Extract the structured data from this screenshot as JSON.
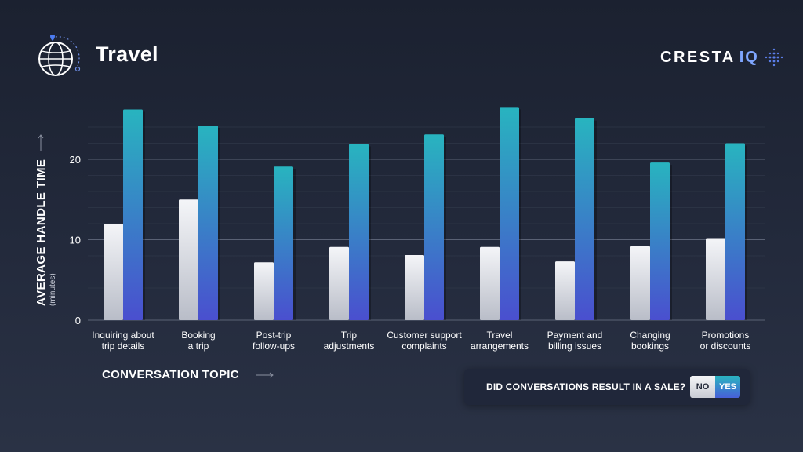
{
  "header": {
    "title": "Travel",
    "logo_text": "CRESTA",
    "logo_accent": "IQ",
    "icon": "globe-icon",
    "logo_icon": "dot-grid-icon"
  },
  "legend": {
    "question": "DID CONVERSATIONS RESULT IN A SALE?",
    "no_label": "NO",
    "yes_label": "YES"
  },
  "chart_data": {
    "type": "bar",
    "title": "Travel",
    "xlabel": "CONVERSATION TOPIC",
    "ylabel": "AVERAGE HANDLE TIME",
    "ylabel_sub": "(minutes)",
    "ylim": [
      0,
      27
    ],
    "yticks": [
      0,
      10,
      20
    ],
    "grid": true,
    "legend_position": "bottom-right",
    "categories": [
      [
        "Inquiring about",
        "trip details"
      ],
      [
        "Booking",
        "a trip"
      ],
      [
        "Post-trip",
        "follow-ups"
      ],
      [
        "Trip",
        "adjustments"
      ],
      [
        "Customer support",
        "complaints"
      ],
      [
        "Travel",
        "arrangements"
      ],
      [
        "Payment and",
        "billing issues"
      ],
      [
        "Changing",
        "bookings"
      ],
      [
        "Promotions",
        "or discounts"
      ]
    ],
    "series": [
      {
        "name": "NO",
        "values": [
          12,
          15,
          7.2,
          9.1,
          8.1,
          9.1,
          7.3,
          9.2,
          10.2
        ]
      },
      {
        "name": "YES",
        "values": [
          26.2,
          24.2,
          19.1,
          21.9,
          23.1,
          26.5,
          25.1,
          19.6,
          22
        ]
      }
    ],
    "colors": {
      "no_top": "#f4f5f8",
      "no_bottom": "#b9bdc8",
      "yes_top": "#28b4bf",
      "yes_bottom": "#4a4fcf"
    }
  }
}
